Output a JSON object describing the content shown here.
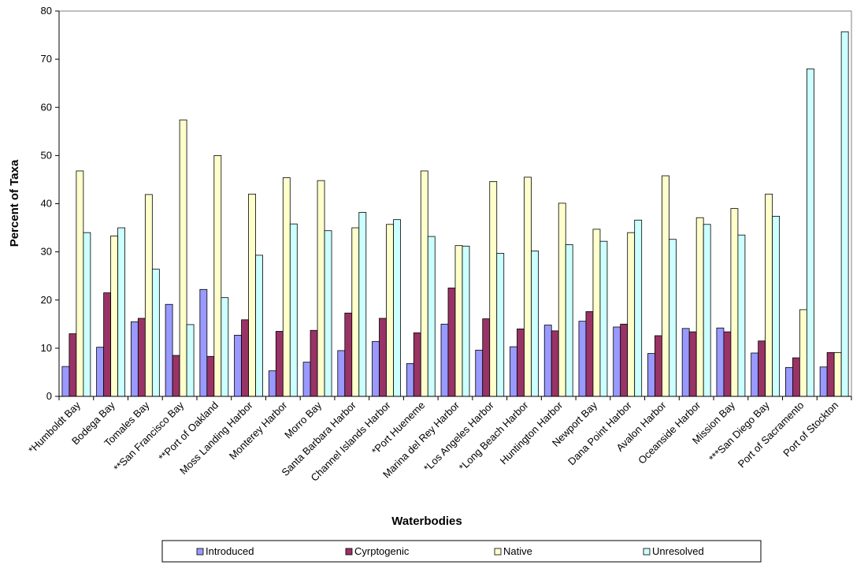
{
  "chart_data": {
    "type": "bar",
    "title": "",
    "xlabel": "Waterbodies",
    "ylabel": "Percent of Taxa",
    "ylim": [
      0,
      80
    ],
    "yticks": [
      0,
      10,
      20,
      30,
      40,
      50,
      60,
      70,
      80
    ],
    "grid": false,
    "legend_position": "bottom",
    "categories": [
      "*Humboldt Bay",
      "Bodega Bay",
      "Tomales Bay",
      "**San Francisco Bay",
      "**Port of Oakland",
      "Moss Landing Harbor",
      "Monterey Harbor",
      "Morro Bay",
      "Santa Barbara Harbor",
      "Channel Islands Harbor",
      "*Port Hueneme",
      "Marina del Rey Harbor",
      "*Los Angeles Harbor",
      "*Long Beach Harbor",
      "Huntington Harbor",
      "Newport Bay",
      "Dana Point Harbor",
      "Avalon Harbor",
      "Oceanside Harbor",
      "Mission Bay",
      "***San Diego Bay",
      "Port of Sacramento",
      "Port of Stockton"
    ],
    "series": [
      {
        "name": "Introduced",
        "color": "#9999ff",
        "values": [
          6.2,
          10.2,
          15.5,
          19.1,
          22.2,
          12.7,
          5.3,
          7.1,
          9.5,
          11.4,
          6.8,
          15.0,
          9.6,
          10.3,
          14.8,
          15.6,
          14.4,
          8.9,
          14.1,
          14.2,
          9.0,
          6.0,
          6.1
        ]
      },
      {
        "name": "Cyrptogenic",
        "color": "#993366",
        "values": [
          13.0,
          21.5,
          16.2,
          8.5,
          8.3,
          15.9,
          13.5,
          13.7,
          17.3,
          16.2,
          13.2,
          22.5,
          16.1,
          14.0,
          13.6,
          17.6,
          15.0,
          12.6,
          13.4,
          13.4,
          11.5,
          8.0,
          9.1
        ]
      },
      {
        "name": "Native",
        "color": "#ffffcc",
        "values": [
          46.8,
          33.3,
          41.9,
          57.4,
          50.0,
          42.0,
          45.4,
          44.8,
          35.0,
          35.7,
          46.8,
          31.3,
          44.6,
          45.5,
          40.1,
          34.7,
          34.0,
          45.8,
          37.1,
          39.0,
          42.0,
          18.0,
          9.1
        ]
      },
      {
        "name": "Unresolved",
        "color": "#ccffff",
        "values": [
          34.0,
          35.0,
          26.4,
          14.9,
          20.5,
          29.3,
          35.8,
          34.4,
          38.2,
          36.7,
          33.2,
          31.2,
          29.7,
          30.2,
          31.5,
          32.2,
          36.6,
          32.6,
          35.7,
          33.5,
          37.4,
          68.0,
          75.7
        ]
      }
    ]
  }
}
